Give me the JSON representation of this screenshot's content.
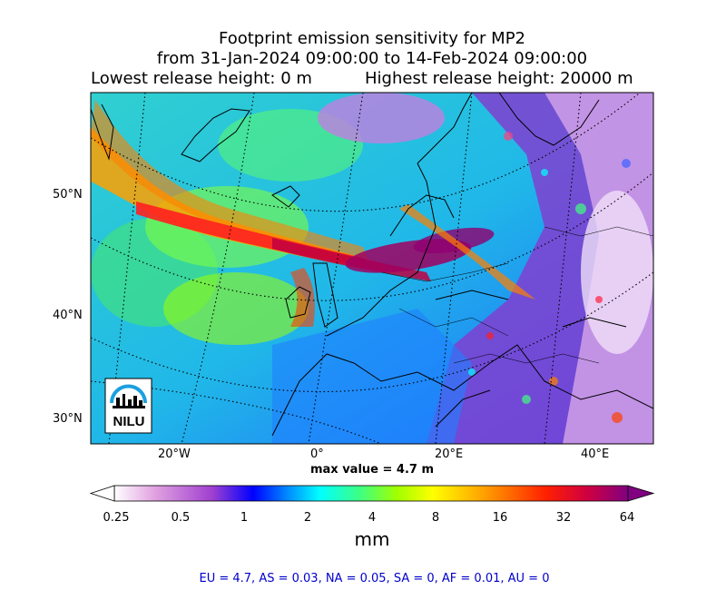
{
  "title": {
    "line1": "Footprint emission sensitivity for MP2",
    "line2": "from 31-Jan-2024 09:00:00 to 14-Feb-2024 09:00:00",
    "lowest": "Lowest release height: 0 m",
    "highest": "Highest release height: 20000 m"
  },
  "map": {
    "lat_labels": [
      "50°N",
      "40°N",
      "30°N"
    ],
    "lon_labels": [
      "20°W",
      "0°",
      "20°E",
      "40°E"
    ],
    "logo_text": "NILU",
    "max_value": "max value = 4.7 m"
  },
  "colorbar": {
    "ticks": [
      "0.25",
      "0.5",
      "1",
      "2",
      "4",
      "8",
      "16",
      "32",
      "64"
    ],
    "unit": "mm",
    "colors": [
      "#ffffff",
      "#e0a0e0",
      "#a040d0",
      "#0000ff",
      "#00a0ff",
      "#00ffff",
      "#40ff80",
      "#a0ff00",
      "#ffff00",
      "#ffa000",
      "#ff4000",
      "#ff0000",
      "#800080"
    ]
  },
  "stats": "EU = 4.7,  AS = 0.03,  NA = 0.05,  SA = 0,  AF = 0.01,  AU = 0"
}
